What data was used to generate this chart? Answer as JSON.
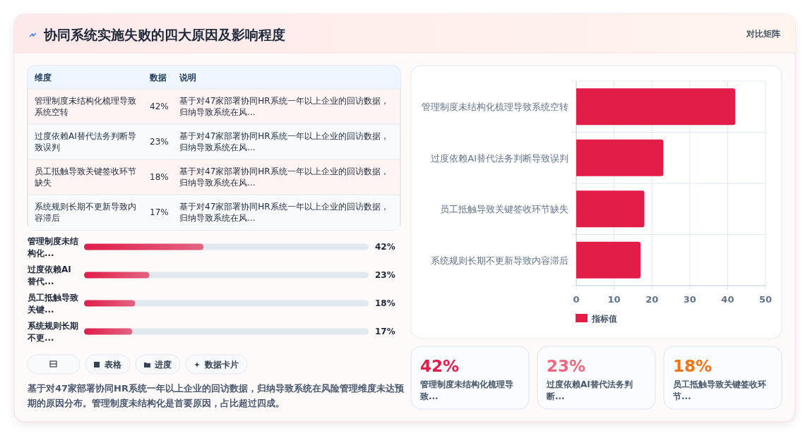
{
  "chart_data": [
    {
      "type": "other",
      "title": "协同系统实施失败的四大原因及影响程度",
      "subtitle": "对比矩阵"
    },
    {
      "type": "other",
      "annotations": [
        "维度",
        "数据",
        "说明",
        "管理制度未结构化梳理导致系统空转",
        "42%",
        "基于对47家部署协同HR系统一年以上企业的回访数据，归纳导致系统在风...",
        "过度依赖AI替代法务判断导致误判",
        "23%",
        "基于对47家部署协同HR系统一年以上企业的回访数据，归纳导致系统在风...",
        "员工抵触导致关键签收环节缺失",
        "18%",
        "基于对47家部署协同HR系统一年以上企业的回访数据，归纳导致系统在风...",
        "系统规则长期不更新导致内容滞后",
        "17%",
        "基于对47家部署协同HR系统一年以上企业的回访数据，归纳导致系统在风..."
      ]
    },
    {
      "type": "bar",
      "orientation": "horizontal",
      "categories": [
        "管理制度未结构化...",
        "过度依赖AI替代...",
        "员工抵触导致关键...",
        "系统规则长期不更..."
      ],
      "values": [
        42,
        23,
        18,
        17
      ],
      "value_labels": [
        "42%",
        "23%",
        "18%",
        "17%"
      ],
      "color": "#e11d48",
      "xlim": [
        0,
        100
      ],
      "tick_labels": "y"
    },
    {
      "type": "other",
      "annotations": [
        "表格",
        "进度",
        "数据卡片",
        "基于对47家部署协同HR系统一年以上企业的回访数据，归纳导致系统在风险管理维度未达预期的原因分布。管理制度未结构化是首要原因，占比超过四成。"
      ]
    },
    {
      "type": "bar",
      "orientation": "horizontal",
      "categories": [
        "管理制度未结构化梳理导致系统空转",
        "过度依赖AI替代法务判断导致误判",
        "员工抵触导致关键签收环节缺失",
        "系统规则长期不更新导致内容滞后"
      ],
      "series": [
        {
          "name": "指标值",
          "color": "#e11d48",
          "values": [
            42,
            23,
            18,
            17
          ]
        }
      ],
      "xlim": [
        0,
        50
      ],
      "xticks": [
        0,
        10,
        20,
        30,
        40,
        50
      ],
      "grid": true,
      "legend": "bottom"
    },
    {
      "type": "other",
      "annotations": [
        "42%",
        "管理制度未结构化梳理导致...",
        "23%",
        "过度依赖AI替代法务判断...",
        "18%",
        "员工抵触导致关键签收环节..."
      ],
      "colors": [
        "#e11d48",
        "#f4677f",
        "#f97316"
      ]
    }
  ]
}
